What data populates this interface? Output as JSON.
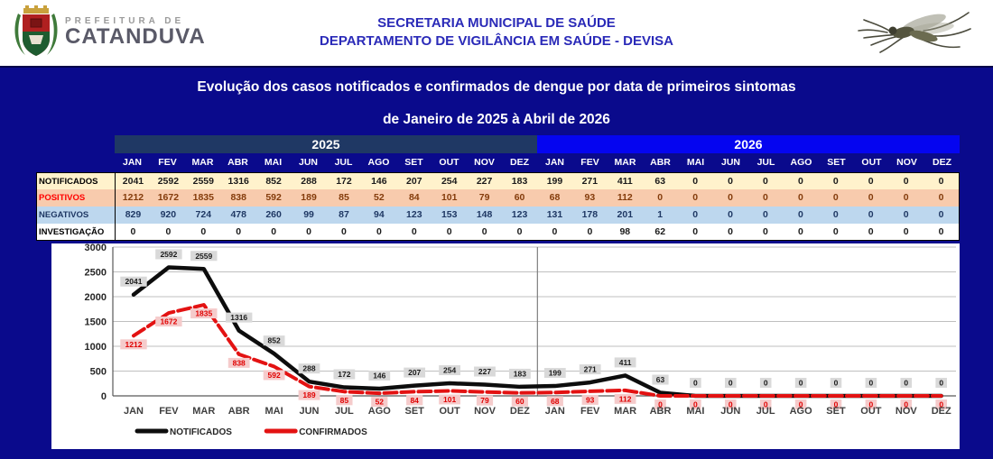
{
  "header": {
    "logo_pretitle": "PREFEITURA DE",
    "logo_city": "CATANDUVA",
    "title_line1": "SECRETARIA MUNICIPAL DE SAÚDE",
    "title_line2": "DEPARTAMENTO DE VIGILÂNCIA EM SAÚDE - DEVISA"
  },
  "panel": {
    "title": "Evolução dos casos notificados e confirmados de dengue por data de primeiros sintomas",
    "subtitle": "de Janeiro de 2025 à Abril de 2026"
  },
  "table": {
    "years": [
      "2025",
      "2026"
    ],
    "months": [
      "JAN",
      "FEV",
      "MAR",
      "ABR",
      "MAI",
      "JUN",
      "JUL",
      "AGO",
      "SET",
      "OUT",
      "NOV",
      "DEZ"
    ],
    "rows": [
      {
        "label": "NOTIFICADOS",
        "bg": "#FFF2CC",
        "label_color": "#000000",
        "value_color": "#1a1a1a",
        "values_2025": [
          2041,
          2592,
          2559,
          1316,
          852,
          288,
          172,
          146,
          207,
          254,
          227,
          183
        ],
        "values_2026": [
          199,
          271,
          411,
          63,
          0,
          0,
          0,
          0,
          0,
          0,
          0,
          0
        ]
      },
      {
        "label": "POSITIVOS",
        "bg": "#F8CBAD",
        "label_color": "#FF0000",
        "value_color": "#843C0C",
        "values_2025": [
          1212,
          1672,
          1835,
          838,
          592,
          189,
          85,
          52,
          84,
          101,
          79,
          60
        ],
        "values_2026": [
          68,
          93,
          112,
          0,
          0,
          0,
          0,
          0,
          0,
          0,
          0,
          0
        ]
      },
      {
        "label": "NEGATIVOS",
        "bg": "#BDD7EE",
        "label_color": "#1F3864",
        "value_color": "#1F3864",
        "values_2025": [
          829,
          920,
          724,
          478,
          260,
          99,
          87,
          94,
          123,
          153,
          148,
          123
        ],
        "values_2026": [
          131,
          178,
          201,
          1,
          0,
          0,
          0,
          0,
          0,
          0,
          0,
          0
        ]
      },
      {
        "label": "INVESTIGAÇÃO",
        "bg": "#FFFFFF",
        "label_color": "#000000",
        "value_color": "#1a1a1a",
        "values_2025": [
          0,
          0,
          0,
          0,
          0,
          0,
          0,
          0,
          0,
          0,
          0,
          0
        ],
        "values_2026": [
          0,
          0,
          98,
          62,
          0,
          0,
          0,
          0,
          0,
          0,
          0,
          0
        ]
      }
    ]
  },
  "chart_data": {
    "type": "line",
    "x": [
      "JAN",
      "FEV",
      "MAR",
      "ABR",
      "MAI",
      "JUN",
      "JUL",
      "AGO",
      "SET",
      "OUT",
      "NOV",
      "DEZ",
      "JAN",
      "FEV",
      "MAR",
      "ABR",
      "MAI",
      "JUN",
      "JUL",
      "AGO",
      "SET",
      "OUT",
      "NOV",
      "DEZ"
    ],
    "series": [
      {
        "name": "NOTIFICADOS",
        "color": "#0d0d0d",
        "values": [
          2041,
          2592,
          2559,
          1316,
          852,
          288,
          172,
          146,
          207,
          254,
          227,
          183,
          199,
          271,
          411,
          63,
          0,
          0,
          0,
          0,
          0,
          0,
          0,
          0
        ]
      },
      {
        "name": "CONFIRMADOS",
        "color": "#e31212",
        "values": [
          1212,
          1672,
          1835,
          838,
          592,
          189,
          85,
          52,
          84,
          101,
          79,
          60,
          68,
          93,
          112,
          0,
          0,
          0,
          0,
          0,
          0,
          0,
          0,
          0
        ]
      }
    ],
    "ylim": [
      0,
      3000
    ],
    "yticks": [
      0,
      500,
      1000,
      1500,
      2000,
      2500,
      3000
    ],
    "grid": true,
    "legend": [
      "NOTIFICADOS",
      "CONFIRMADOS"
    ],
    "legend_position": "bottom-left",
    "year_divider_after_index": 11
  },
  "colors": {
    "panel_bg": "#0a0a8c",
    "year_2025_bg": "#1F3864",
    "year_2026_bg": "#0505F0",
    "header_text": "#2a2ab8",
    "black_label_box": "#D9D9D9",
    "red_label_box": "#F5CBCB",
    "gridline": "#BFBFBF"
  }
}
